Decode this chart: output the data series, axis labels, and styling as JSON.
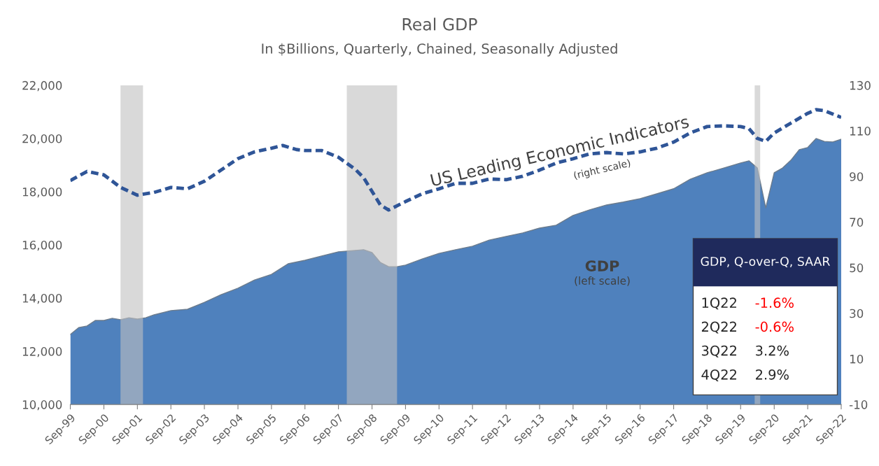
{
  "chart_data": {
    "type": "area",
    "title": "Real GDP",
    "subtitle": "In $Billions, Quarterly, Chained, Seasonally Adjusted",
    "series": [
      {
        "name": "GDP",
        "color": "#4f81bd",
        "x": [
          "1999-09",
          "1999-12",
          "2000-03",
          "2000-06",
          "2000-09",
          "2000-12",
          "2001-03",
          "2001-06",
          "2001-09",
          "2001-12",
          "2002-03",
          "2002-09",
          "2003-03",
          "2003-09",
          "2004-03",
          "2004-09",
          "2005-03",
          "2005-09",
          "2006-03",
          "2006-09",
          "2007-03",
          "2007-09",
          "2008-03",
          "2008-06",
          "2008-09",
          "2008-12",
          "2009-03",
          "2009-06",
          "2009-09",
          "2010-03",
          "2010-09",
          "2011-03",
          "2011-09",
          "2012-03",
          "2012-09",
          "2013-03",
          "2013-09",
          "2014-03",
          "2014-09",
          "2015-03",
          "2015-09",
          "2016-03",
          "2016-09",
          "2017-03",
          "2017-09",
          "2018-03",
          "2018-09",
          "2019-03",
          "2019-09",
          "2019-12",
          "2020-03",
          "2020-06",
          "2020-09",
          "2020-12",
          "2021-03",
          "2021-06",
          "2021-09",
          "2021-12",
          "2022-03",
          "2022-06",
          "2022-09"
        ],
        "values": [
          12630,
          12890,
          12950,
          13160,
          13160,
          13240,
          13190,
          13260,
          13210,
          13260,
          13370,
          13530,
          13580,
          13840,
          14130,
          14370,
          14680,
          14890,
          15290,
          15420,
          15580,
          15740,
          15790,
          15820,
          15710,
          15340,
          15180,
          15180,
          15240,
          15470,
          15680,
          15820,
          15950,
          16180,
          16320,
          16450,
          16630,
          16740,
          17110,
          17320,
          17500,
          17610,
          17740,
          17920,
          18110,
          18470,
          18710,
          18890,
          19080,
          19160,
          18890,
          17390,
          18710,
          18890,
          19180,
          19580,
          19660,
          20000,
          19890,
          19870,
          19970
        ]
      },
      {
        "name": "US Leading Economic Indicators",
        "type": "line",
        "axis": "y2",
        "color": "#2f5597",
        "line_style": "dashed",
        "x": [
          "1999-09",
          "2000-03",
          "2000-09",
          "2001-03",
          "2001-09",
          "2002-03",
          "2002-09",
          "2003-03",
          "2003-09",
          "2004-03",
          "2004-09",
          "2005-03",
          "2005-09",
          "2006-01",
          "2006-06",
          "2006-09",
          "2007-03",
          "2007-09",
          "2008-03",
          "2008-06",
          "2008-12",
          "2009-03",
          "2009-09",
          "2010-03",
          "2010-09",
          "2011-03",
          "2011-09",
          "2012-03",
          "2012-09",
          "2013-03",
          "2013-09",
          "2014-03",
          "2014-09",
          "2015-03",
          "2015-09",
          "2016-03",
          "2016-09",
          "2017-03",
          "2017-09",
          "2018-03",
          "2018-09",
          "2019-03",
          "2019-09",
          "2019-12",
          "2020-03",
          "2020-06",
          "2020-09",
          "2021-03",
          "2021-09",
          "2021-12",
          "2022-03",
          "2022-09"
        ],
        "values": [
          88.2,
          92.2,
          90.7,
          85.2,
          81.8,
          83.0,
          85.2,
          84.6,
          87.9,
          92.8,
          97.8,
          100.8,
          102.4,
          103.6,
          101.8,
          101.4,
          101.4,
          98.4,
          93.2,
          89.5,
          77.5,
          75.3,
          79.0,
          82.4,
          84.6,
          87.0,
          87.0,
          88.9,
          88.6,
          90.1,
          92.8,
          95.9,
          97.8,
          99.9,
          100.5,
          99.9,
          100.8,
          102.4,
          105.1,
          109.1,
          111.9,
          112.2,
          111.9,
          111.0,
          106.7,
          105.4,
          109.1,
          113.4,
          117.7,
          119.3,
          118.9,
          115.9
        ]
      }
    ],
    "xlim": [
      "1999-09",
      "2022-09"
    ],
    "xticks": [
      {
        "value": "1999-09",
        "label": "Sep-99"
      },
      {
        "value": "2000-09",
        "label": "Sep-00"
      },
      {
        "value": "2001-09",
        "label": "Sep-01"
      },
      {
        "value": "2002-09",
        "label": "Sep-02"
      },
      {
        "value": "2003-09",
        "label": "Sep-03"
      },
      {
        "value": "2004-09",
        "label": "Sep-04"
      },
      {
        "value": "2005-09",
        "label": "Sep-05"
      },
      {
        "value": "2006-09",
        "label": "Sep-06"
      },
      {
        "value": "2007-09",
        "label": "Sep-07"
      },
      {
        "value": "2008-09",
        "label": "Sep-08"
      },
      {
        "value": "2009-09",
        "label": "Sep-09"
      },
      {
        "value": "2010-09",
        "label": "Sep-10"
      },
      {
        "value": "2011-09",
        "label": "Sep-11"
      },
      {
        "value": "2012-09",
        "label": "Sep-12"
      },
      {
        "value": "2013-09",
        "label": "Sep-13"
      },
      {
        "value": "2014-09",
        "label": "Sep-14"
      },
      {
        "value": "2015-09",
        "label": "Sep-15"
      },
      {
        "value": "2016-09",
        "label": "Sep-16"
      },
      {
        "value": "2017-09",
        "label": "Sep-17"
      },
      {
        "value": "2018-09",
        "label": "Sep-18"
      },
      {
        "value": "2019-09",
        "label": "Sep-19"
      },
      {
        "value": "2020-09",
        "label": "Sep-20"
      },
      {
        "value": "2021-09",
        "label": "Sep-21"
      },
      {
        "value": "2022-09",
        "label": "Sep-22"
      }
    ],
    "ylim": [
      10000,
      22000
    ],
    "yticks": [
      {
        "value": 10000,
        "label": "10,000"
      },
      {
        "value": 12000,
        "label": "12,000"
      },
      {
        "value": 14000,
        "label": "14,000"
      },
      {
        "value": 16000,
        "label": "16,000"
      },
      {
        "value": 18000,
        "label": "18,000"
      },
      {
        "value": 20000,
        "label": "20,000"
      },
      {
        "value": 22000,
        "label": "22,000"
      }
    ],
    "y2lim": [
      -10,
      130
    ],
    "y2ticks": [
      -10,
      10,
      30,
      50,
      70,
      90,
      110,
      130
    ],
    "bands": [
      {
        "axis": "x",
        "from": "2001-03",
        "to": "2001-11",
        "color": "#bfbfbf"
      },
      {
        "axis": "x",
        "from": "2007-12",
        "to": "2009-06",
        "color": "#bfbfbf"
      },
      {
        "axis": "x",
        "from": "2020-02",
        "to": "2020-04",
        "color": "#bfbfbf"
      }
    ],
    "annotations": [
      "(right scale)",
      "(left scale)",
      "GDP, Q-over-Q, SAAR",
      "1Q22",
      "-1.6%",
      "2Q22",
      "-0.6%",
      "3Q22",
      "3.2%",
      "4Q22",
      "2.9%"
    ],
    "grid": false,
    "legend": false
  }
}
